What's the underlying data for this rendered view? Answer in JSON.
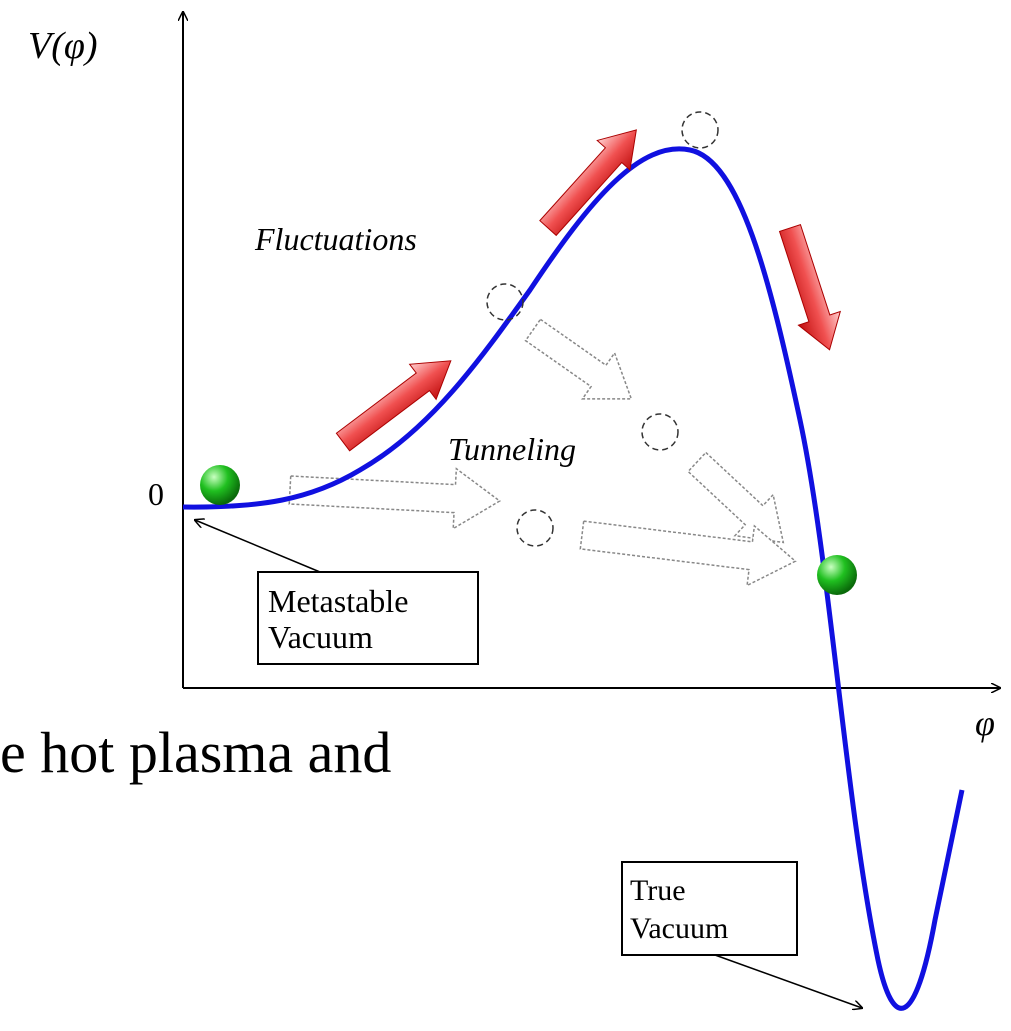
{
  "axis": {
    "y_label": "V(φ)",
    "zero_label": "0",
    "x_label": "φ"
  },
  "labels": {
    "fluctuations": "Fluctuations",
    "tunneling": "Tunneling"
  },
  "boxes": [
    {
      "lines": [
        "Metastable",
        "Vacuum"
      ]
    },
    {
      "lines": [
        "True",
        "Vacuum"
      ]
    }
  ],
  "background_text": "e hot plasma and"
}
